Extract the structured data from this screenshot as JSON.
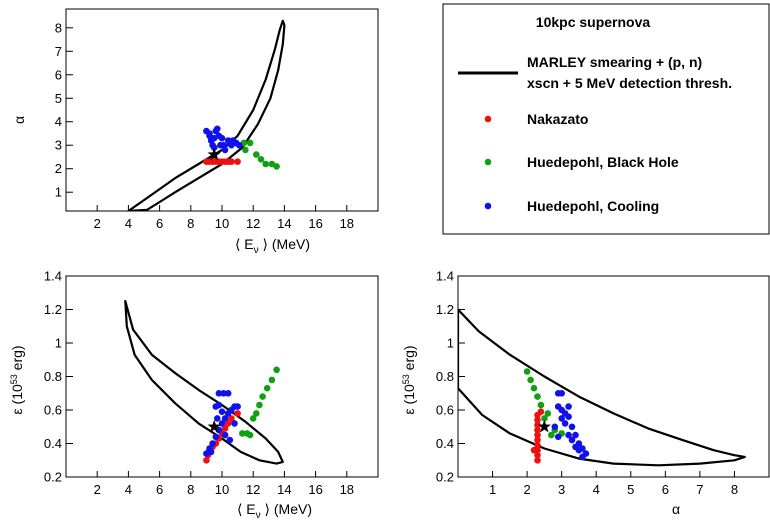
{
  "legend": {
    "title": "10kpc supernova",
    "contour_label_line1": "MARLEY smearing + (p, n)",
    "contour_label_line2": "xscn + 5 MeV detection thresh.",
    "entries": [
      {
        "label": "Nakazato",
        "color": "#ee1111"
      },
      {
        "label": "Huedepohl, Black Hole",
        "color": "#11a011"
      },
      {
        "label": "Huedepohl, Cooling",
        "color": "#1111ee"
      }
    ]
  },
  "colors": {
    "nakazato": "#ee1111",
    "blackhole": "#11a011",
    "cooling": "#1111ee",
    "contour": "#000000"
  },
  "chart_data": [
    {
      "type": "scatter",
      "id": "alpha_vs_E",
      "xlabel_pre": "⟨ E",
      "xlabel_sub": "ν",
      "xlabel_post": " ⟩ (MeV)",
      "ylabel": "α",
      "xlim": [
        0,
        20
      ],
      "ylim": [
        0.2,
        8.8
      ],
      "xticks": [
        2,
        4,
        6,
        8,
        10,
        12,
        14,
        16,
        18
      ],
      "xtick_labels": [
        "2",
        "4",
        "6",
        "8",
        "10",
        "12",
        "14",
        "16",
        "18"
      ],
      "yticks": [
        1,
        2,
        3,
        4,
        5,
        6,
        7,
        8
      ],
      "ytick_labels": [
        "1",
        "2",
        "3",
        "4",
        "5",
        "6",
        "7",
        "8"
      ],
      "true_value": {
        "x": 9.5,
        "y": 2.6
      },
      "contour": [
        [
          4.0,
          0.2
        ],
        [
          5.5,
          0.9
        ],
        [
          7.0,
          1.6
        ],
        [
          8.5,
          2.2
        ],
        [
          10.0,
          2.8
        ],
        [
          11.0,
          3.4
        ],
        [
          12.0,
          4.5
        ],
        [
          12.8,
          5.8
        ],
        [
          13.4,
          7.1
        ],
        [
          13.7,
          7.9
        ],
        [
          13.9,
          8.3
        ],
        [
          14.0,
          8.1
        ],
        [
          13.9,
          7.3
        ],
        [
          13.6,
          6.2
        ],
        [
          13.1,
          5.0
        ],
        [
          12.3,
          3.9
        ],
        [
          11.3,
          2.9
        ],
        [
          10.0,
          2.2
        ],
        [
          8.5,
          1.6
        ],
        [
          7.0,
          1.0
        ],
        [
          5.8,
          0.5
        ],
        [
          5.2,
          0.25
        ]
      ],
      "series": [
        {
          "name": "Nakazato",
          "color_key": "nakazato",
          "points": [
            [
              9.0,
              2.3
            ],
            [
              9.2,
              2.3
            ],
            [
              9.4,
              2.3
            ],
            [
              9.6,
              2.3
            ],
            [
              9.8,
              2.3
            ],
            [
              10.0,
              2.3
            ],
            [
              10.2,
              2.3
            ],
            [
              10.4,
              2.3
            ],
            [
              10.6,
              2.3
            ],
            [
              11.0,
              2.3
            ],
            [
              9.5,
              2.4
            ]
          ]
        },
        {
          "name": "Huedepohl, Black Hole",
          "color_key": "blackhole",
          "points": [
            [
              11.4,
              3.1
            ],
            [
              11.8,
              3.1
            ],
            [
              11.5,
              2.8
            ],
            [
              12.2,
              2.6
            ],
            [
              12.5,
              2.4
            ],
            [
              12.8,
              2.2
            ],
            [
              13.2,
              2.2
            ],
            [
              13.5,
              2.1
            ]
          ]
        },
        {
          "name": "Huedepohl, Cooling",
          "color_key": "cooling",
          "points": [
            [
              9.0,
              3.6
            ],
            [
              9.2,
              3.4
            ],
            [
              9.3,
              3.2
            ],
            [
              9.4,
              3.0
            ],
            [
              9.5,
              3.3
            ],
            [
              9.6,
              3.6
            ],
            [
              9.7,
              3.7
            ],
            [
              9.8,
              3.4
            ],
            [
              10.0,
              3.3
            ],
            [
              10.1,
              3.0
            ],
            [
              10.2,
              2.8
            ],
            [
              10.4,
              3.2
            ],
            [
              10.5,
              3.1
            ],
            [
              10.6,
              3.0
            ],
            [
              10.7,
              3.2
            ],
            [
              10.9,
              3.1
            ],
            [
              11.1,
              3.0
            ],
            [
              9.9,
              3.0
            ],
            [
              9.5,
              2.9
            ],
            [
              9.2,
              3.5
            ]
          ]
        }
      ]
    },
    {
      "type": "scatter",
      "id": "eps_vs_E",
      "xlabel_pre": "⟨ E",
      "xlabel_sub": "ν",
      "xlabel_post": " ⟩ (MeV)",
      "ylabel_pre": "ε (10",
      "ylabel_sup": "53",
      "ylabel_post": " erg)",
      "xlim": [
        0,
        20
      ],
      "ylim": [
        0.2,
        1.4
      ],
      "xticks": [
        2,
        4,
        6,
        8,
        10,
        12,
        14,
        16,
        18
      ],
      "xtick_labels": [
        "2",
        "4",
        "6",
        "8",
        "10",
        "12",
        "14",
        "16",
        "18"
      ],
      "yticks": [
        0.2,
        0.4,
        0.6,
        0.8,
        1.0,
        1.2,
        1.4
      ],
      "ytick_labels": [
        "0.2",
        "0.4",
        "0.6",
        "0.8",
        "1",
        "1.2",
        "1.4"
      ],
      "true_value": {
        "x": 9.5,
        "y": 0.5
      },
      "contour": [
        [
          3.8,
          1.25
        ],
        [
          4.3,
          1.08
        ],
        [
          5.5,
          0.93
        ],
        [
          7.0,
          0.82
        ],
        [
          8.5,
          0.72
        ],
        [
          10.0,
          0.63
        ],
        [
          11.5,
          0.53
        ],
        [
          12.8,
          0.43
        ],
        [
          13.6,
          0.35
        ],
        [
          13.9,
          0.29
        ],
        [
          13.5,
          0.28
        ],
        [
          12.4,
          0.3
        ],
        [
          11.2,
          0.35
        ],
        [
          10.0,
          0.43
        ],
        [
          8.5,
          0.52
        ],
        [
          7.0,
          0.64
        ],
        [
          5.5,
          0.78
        ],
        [
          4.4,
          0.93
        ],
        [
          3.9,
          1.1
        ],
        [
          3.8,
          1.25
        ]
      ],
      "series": [
        {
          "name": "Nakazato",
          "color_key": "nakazato",
          "points": [
            [
              9.0,
              0.3
            ],
            [
              9.1,
              0.33
            ],
            [
              9.2,
              0.36
            ],
            [
              9.4,
              0.38
            ],
            [
              9.6,
              0.4
            ],
            [
              9.8,
              0.43
            ],
            [
              10.0,
              0.46
            ],
            [
              10.2,
              0.49
            ],
            [
              10.4,
              0.52
            ],
            [
              10.6,
              0.55
            ],
            [
              11.0,
              0.58
            ]
          ]
        },
        {
          "name": "Huedepohl, Black Hole",
          "color_key": "blackhole",
          "points": [
            [
              11.3,
              0.46
            ],
            [
              11.6,
              0.46
            ],
            [
              11.8,
              0.45
            ],
            [
              12.2,
              0.58
            ],
            [
              12.4,
              0.63
            ],
            [
              12.6,
              0.68
            ],
            [
              12.9,
              0.73
            ],
            [
              13.2,
              0.78
            ],
            [
              13.5,
              0.84
            ],
            [
              12.0,
              0.55
            ]
          ]
        },
        {
          "name": "Huedepohl, Cooling",
          "color_key": "cooling",
          "points": [
            [
              9.0,
              0.34
            ],
            [
              9.2,
              0.37
            ],
            [
              9.4,
              0.4
            ],
            [
              9.6,
              0.44
            ],
            [
              9.8,
              0.48
            ],
            [
              10.0,
              0.52
            ],
            [
              10.2,
              0.55
            ],
            [
              10.4,
              0.58
            ],
            [
              10.6,
              0.6
            ],
            [
              10.8,
              0.62
            ],
            [
              9.6,
              0.62
            ],
            [
              9.8,
              0.7
            ],
            [
              10.1,
              0.7
            ],
            [
              10.4,
              0.7
            ],
            [
              9.7,
              0.55
            ],
            [
              10.2,
              0.45
            ],
            [
              10.5,
              0.42
            ],
            [
              10.8,
              0.52
            ],
            [
              11.0,
              0.62
            ],
            [
              9.8,
              0.63
            ],
            [
              10.0,
              0.59
            ],
            [
              9.3,
              0.35
            ]
          ]
        }
      ]
    },
    {
      "type": "scatter",
      "id": "eps_vs_alpha",
      "xlabel": "α",
      "ylabel_pre": "ε (10",
      "ylabel_sup": "53",
      "ylabel_post": " erg)",
      "xlim": [
        0,
        9
      ],
      "ylim": [
        0.2,
        1.4
      ],
      "xticks": [
        1,
        2,
        3,
        4,
        5,
        6,
        7,
        8
      ],
      "xtick_labels": [
        "1",
        "2",
        "3",
        "4",
        "5",
        "6",
        "7",
        "8"
      ],
      "yticks": [
        0.2,
        0.4,
        0.6,
        0.8,
        1.0,
        1.2,
        1.4
      ],
      "ytick_labels": [
        "0.2",
        "0.4",
        "0.6",
        "0.8",
        "1",
        "1.2",
        "1.4"
      ],
      "true_value": {
        "x": 2.5,
        "y": 0.5
      },
      "contour": [
        [
          0.0,
          1.2
        ],
        [
          0.6,
          1.07
        ],
        [
          1.5,
          0.93
        ],
        [
          2.5,
          0.8
        ],
        [
          3.5,
          0.68
        ],
        [
          4.5,
          0.58
        ],
        [
          5.5,
          0.49
        ],
        [
          6.5,
          0.42
        ],
        [
          7.4,
          0.36
        ],
        [
          8.0,
          0.33
        ],
        [
          8.3,
          0.32
        ],
        [
          8.0,
          0.3
        ],
        [
          7.0,
          0.28
        ],
        [
          5.8,
          0.27
        ],
        [
          4.5,
          0.28
        ],
        [
          3.5,
          0.31
        ],
        [
          2.5,
          0.37
        ],
        [
          1.5,
          0.46
        ],
        [
          0.7,
          0.57
        ],
        [
          0.0,
          0.73
        ]
      ],
      "series": [
        {
          "name": "Nakazato",
          "color_key": "nakazato",
          "points": [
            [
              2.3,
              0.3
            ],
            [
              2.3,
              0.33
            ],
            [
              2.3,
              0.36
            ],
            [
              2.3,
              0.39
            ],
            [
              2.3,
              0.42
            ],
            [
              2.3,
              0.45
            ],
            [
              2.3,
              0.48
            ],
            [
              2.3,
              0.51
            ],
            [
              2.3,
              0.54
            ],
            [
              2.3,
              0.57
            ],
            [
              2.4,
              0.59
            ],
            [
              2.2,
              0.36
            ]
          ]
        },
        {
          "name": "Huedepohl, Black Hole",
          "color_key": "blackhole",
          "points": [
            [
              2.0,
              0.83
            ],
            [
              2.1,
              0.78
            ],
            [
              2.2,
              0.73
            ],
            [
              2.3,
              0.68
            ],
            [
              2.4,
              0.63
            ],
            [
              2.6,
              0.58
            ],
            [
              2.8,
              0.48
            ],
            [
              2.7,
              0.45
            ],
            [
              3.0,
              0.46
            ],
            [
              2.5,
              0.55
            ]
          ]
        },
        {
          "name": "Huedepohl, Cooling",
          "color_key": "cooling",
          "points": [
            [
              2.9,
              0.7
            ],
            [
              3.0,
              0.7
            ],
            [
              2.9,
              0.62
            ],
            [
              3.0,
              0.6
            ],
            [
              3.1,
              0.58
            ],
            [
              3.2,
              0.56
            ],
            [
              3.3,
              0.5
            ],
            [
              3.4,
              0.45
            ],
            [
              3.5,
              0.4
            ],
            [
              3.6,
              0.37
            ],
            [
              3.7,
              0.34
            ],
            [
              3.0,
              0.55
            ],
            [
              3.2,
              0.45
            ],
            [
              3.4,
              0.38
            ],
            [
              2.8,
              0.5
            ],
            [
              3.1,
              0.52
            ],
            [
              3.3,
              0.42
            ],
            [
              3.5,
              0.36
            ],
            [
              2.9,
              0.44
            ],
            [
              3.2,
              0.62
            ],
            [
              3.6,
              0.32
            ]
          ]
        }
      ]
    }
  ]
}
